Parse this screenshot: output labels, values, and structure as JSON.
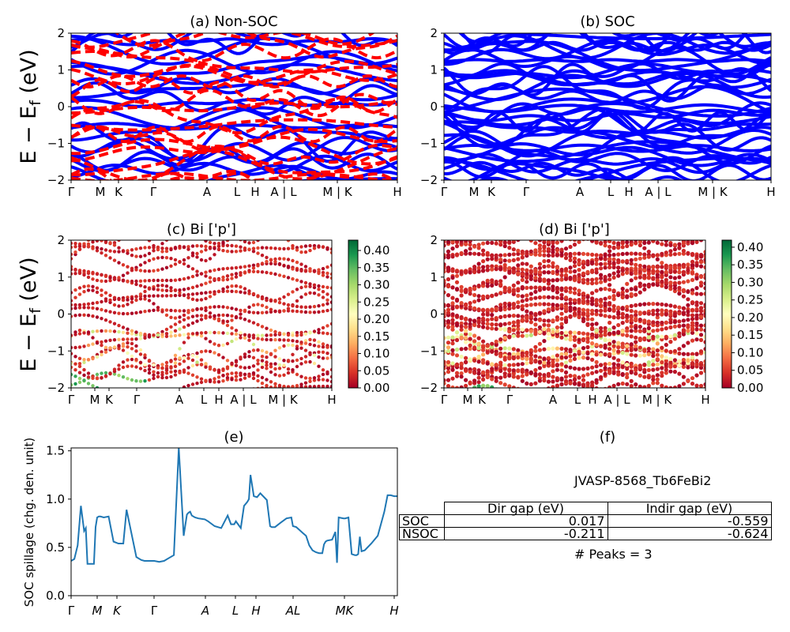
{
  "panels": {
    "a": {
      "title": "(a) Non-SOC"
    },
    "b": {
      "title": "(b) SOC"
    },
    "c": {
      "title": "(c)  Bi ['p']"
    },
    "d": {
      "title": "(d) Bi ['p']"
    },
    "e": {
      "title": "(e)"
    },
    "f": {
      "title": "(f)"
    }
  },
  "band_ylabel": "E − E_f (eV)",
  "band_yticks": [
    "2",
    "1",
    "0",
    "−1",
    "−2"
  ],
  "kpath_labels": [
    "Γ",
    "M",
    "K",
    "Γ",
    "A",
    "L",
    "H",
    "A | L",
    "M | K",
    "H"
  ],
  "colorbar_c_ticks": [
    "0.40",
    "0.35",
    "0.30",
    "0.25",
    "0.20",
    "0.15",
    "0.10",
    "0.05",
    "0.00"
  ],
  "colorbar_d_ticks": [
    "0.40",
    "0.35",
    "0.30",
    "0.25",
    "0.20",
    "0.15",
    "0.10",
    "0.05",
    "0.00"
  ],
  "colors": {
    "nonsoc_up": "#0000ff",
    "nonsoc_down": "#ff0000",
    "soc": "#0000ff",
    "spillage": "#1f77b4"
  },
  "spillage": {
    "ylabel": "SOC spillage (chg. den. unit)",
    "yticks": [
      "1.5",
      "1.0",
      "0.5",
      "0.0"
    ],
    "xticks": [
      "Γ",
      "M",
      "K",
      "Γ",
      "A",
      "L",
      "H",
      "AL",
      "MK",
      "H"
    ]
  },
  "info": {
    "material": "JVASP-8568_Tb6FeBi2",
    "table": {
      "headers": [
        "",
        "Dir gap (eV)",
        "Indir gap (eV)"
      ],
      "rows": [
        {
          "label": "SOC",
          "dir": "0.017",
          "indir": "-0.559"
        },
        {
          "label": "NSOC",
          "dir": "-0.211",
          "indir": "-0.624"
        }
      ]
    },
    "peaks": "# Peaks = 3"
  },
  "chart_data": [
    {
      "type": "line",
      "title": "(a) Non-SOC",
      "ylim": [
        -2,
        2
      ],
      "ylabel": "E − E_f (eV)",
      "xticks": [
        "Γ",
        "M",
        "K",
        "Γ",
        "A",
        "L",
        "H",
        "A | L",
        "M | K",
        "H"
      ],
      "series": [
        {
          "values": "spin-up bands (blue solid)"
        },
        {
          "values": "spin-down bands (red dashed)"
        }
      ]
    },
    {
      "type": "line",
      "title": "(b) SOC",
      "ylim": [
        -2,
        2
      ],
      "xticks": [
        "Γ",
        "M",
        "K",
        "Γ",
        "A",
        "L",
        "H",
        "A | L",
        "M | K",
        "H"
      ]
    },
    {
      "type": "scatter",
      "title": "(c)  Bi ['p']",
      "ylim": [
        -2,
        2
      ],
      "colorbar_range": [
        0.0,
        0.43
      ]
    },
    {
      "type": "scatter",
      "title": "(d) Bi ['p']",
      "ylim": [
        -2,
        2
      ],
      "colorbar_range": [
        0.0,
        0.42
      ]
    },
    {
      "type": "line",
      "title": "(e)",
      "ylabel": "SOC spillage (chg. den. unit)",
      "ylim": [
        0.0,
        1.53
      ],
      "x": [
        0,
        0.01,
        0.02,
        0.03,
        0.04,
        0.045,
        0.05,
        0.055,
        0.06,
        0.065,
        0.07,
        0.075,
        0.08,
        0.085,
        0.09,
        0.1,
        0.115,
        0.13,
        0.145,
        0.16,
        0.17,
        0.2,
        0.215,
        0.225,
        0.24,
        0.255,
        0.27,
        0.285,
        0.3,
        0.315,
        0.33,
        0.345,
        0.355,
        0.36,
        0.365,
        0.37,
        0.38,
        0.39,
        0.41,
        0.42,
        0.44,
        0.46,
        0.48,
        0.49,
        0.5,
        0.505,
        0.52,
        0.53,
        0.54,
        0.545,
        0.55,
        0.56,
        0.57,
        0.58,
        0.6,
        0.61,
        0.615,
        0.625,
        0.64,
        0.66,
        0.675,
        0.68,
        0.69,
        0.7,
        0.71,
        0.72,
        0.73,
        0.74,
        0.75,
        0.76,
        0.77,
        0.775,
        0.78,
        0.785,
        0.8,
        0.81,
        0.815,
        0.82,
        0.835,
        0.84,
        0.85,
        0.86,
        0.87,
        0.875,
        0.88,
        0.885,
        0.89,
        0.9,
        0.92,
        0.94,
        0.96,
        0.97,
        0.98,
        0.99,
        1
      ],
      "values": [
        0.36,
        0.38,
        0.52,
        0.93,
        0.67,
        0.7,
        0.33,
        0.33,
        0.33,
        0.33,
        0.33,
        0.71,
        0.81,
        0.82,
        0.82,
        0.81,
        0.82,
        0.56,
        0.54,
        0.54,
        0.89,
        0.4,
        0.37,
        0.36,
        0.36,
        0.36,
        0.35,
        0.36,
        0.39,
        0.42,
        1.53,
        0.62,
        0.84,
        0.86,
        0.87,
        0.83,
        0.81,
        0.8,
        0.79,
        0.77,
        0.72,
        0.7,
        0.83,
        0.74,
        0.74,
        0.77,
        0.7,
        0.93,
        0.97,
        1.0,
        1.25,
        1.03,
        1.02,
        1.06,
        0.99,
        0.72,
        0.71,
        0.71,
        0.75,
        0.8,
        0.81,
        0.72,
        0.71,
        0.68,
        0.65,
        0.62,
        0.52,
        0.47,
        0.45,
        0.44,
        0.44,
        0.53,
        0.56,
        0.57,
        0.58,
        0.66,
        0.34,
        0.81,
        0.8,
        0.8,
        0.81,
        0.43,
        0.42,
        0.42,
        0.43,
        0.61,
        0.46,
        0.47,
        0.54,
        0.62,
        0.87,
        1.04,
        1.04,
        1.03,
        1.03
      ],
      "xticks": [
        "Γ",
        "M",
        "K",
        "Γ",
        "A",
        "L",
        "H",
        "AL",
        "MK",
        "H"
      ]
    }
  ]
}
